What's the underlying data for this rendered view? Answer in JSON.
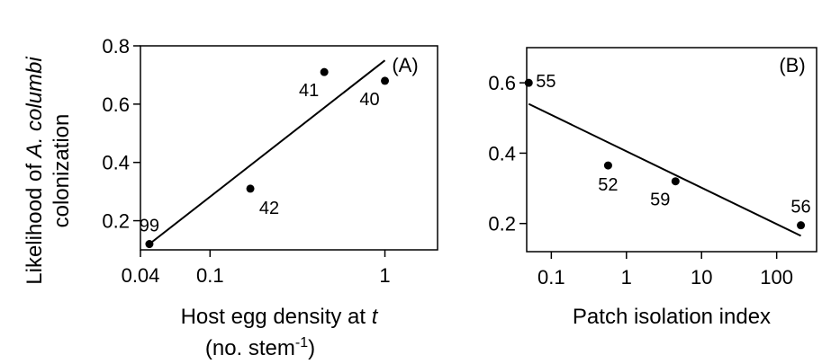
{
  "figure": {
    "ylabel_line1_prefix": "Likelihood of ",
    "ylabel_line1_species": "A. columbi",
    "ylabel_line2": "colonization"
  },
  "chart_data": [
    {
      "type": "scatter",
      "panel_label": "(A)",
      "xscale": "log",
      "xlim": [
        0.04,
        2
      ],
      "ylim": [
        0.1,
        0.8
      ],
      "xticks": [
        0.04,
        0.1,
        1
      ],
      "xtick_labels": [
        "0.04",
        "0.1",
        "1"
      ],
      "yticks": [
        0.2,
        0.4,
        0.6,
        0.8
      ],
      "ytick_labels": [
        "0.2",
        "0.4",
        "0.6",
        "0.8"
      ],
      "xlabel_line1_text": "Host egg density at ",
      "xlabel_line1_var": "t",
      "xlabel_line2_pre": "(no. stem",
      "xlabel_line2_sup": "-1",
      "xlabel_line2_post": ")",
      "points": [
        {
          "x": 0.045,
          "y": 0.12,
          "label": "99",
          "label_pos": "above"
        },
        {
          "x": 0.17,
          "y": 0.31,
          "label": "42",
          "label_pos": "below-right"
        },
        {
          "x": 0.45,
          "y": 0.71,
          "label": "41",
          "label_pos": "below-left"
        },
        {
          "x": 1.0,
          "y": 0.68,
          "label": "40",
          "label_pos": "below-left"
        }
      ],
      "trendline": [
        [
          0.045,
          0.12
        ],
        [
          1.0,
          0.75
        ]
      ],
      "grid": false
    },
    {
      "type": "scatter",
      "panel_label": "(B)",
      "xscale": "log",
      "xlim": [
        0.047,
        340
      ],
      "ylim": [
        0.12,
        0.7
      ],
      "xticks": [
        0.1,
        1,
        10,
        100
      ],
      "xtick_labels": [
        "0.1",
        "1",
        "10",
        "100"
      ],
      "yticks": [
        0.2,
        0.4,
        0.6
      ],
      "ytick_labels": [
        "0.2",
        "0.4",
        "0.6"
      ],
      "xlabel": "Patch isolation index",
      "points": [
        {
          "x": 0.05,
          "y": 0.6,
          "label": "55",
          "label_pos": "right"
        },
        {
          "x": 0.57,
          "y": 0.365,
          "label": "52",
          "label_pos": "below"
        },
        {
          "x": 4.5,
          "y": 0.32,
          "label": "59",
          "label_pos": "below-left"
        },
        {
          "x": 210,
          "y": 0.195,
          "label": "56",
          "label_pos": "above"
        }
      ],
      "trendline": [
        [
          0.05,
          0.54
        ],
        [
          210,
          0.165
        ]
      ],
      "grid": false
    }
  ]
}
